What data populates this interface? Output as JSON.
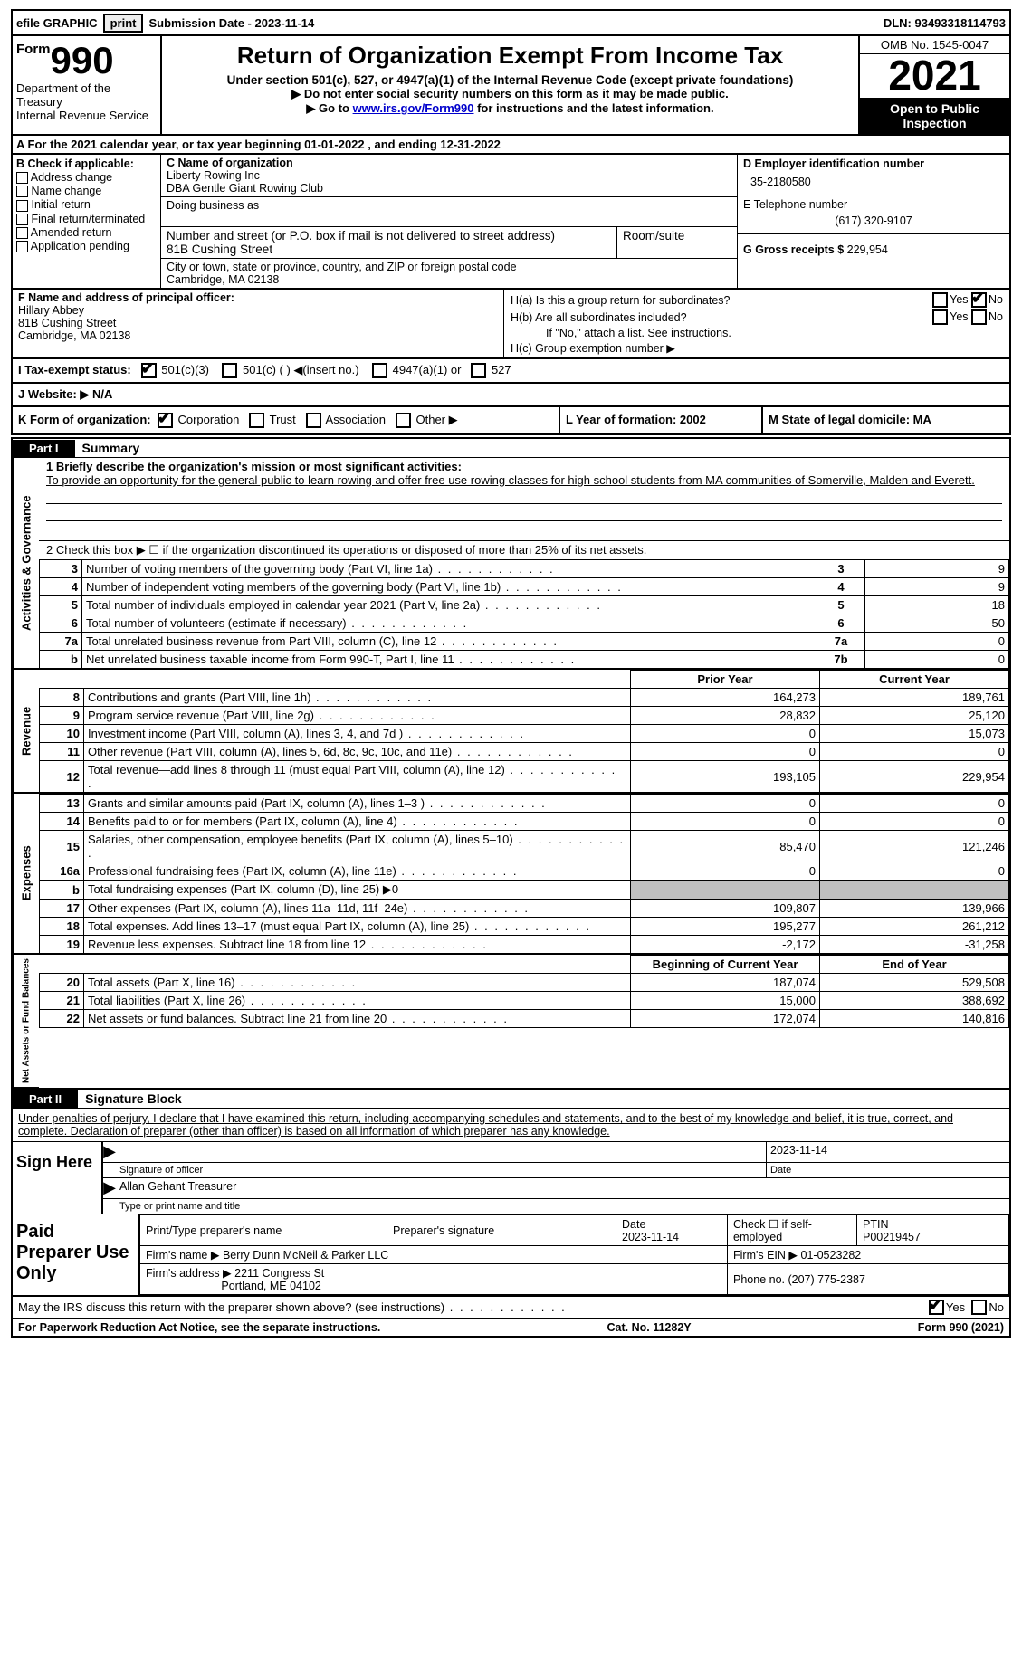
{
  "topbar": {
    "efile": "efile GRAPHIC",
    "print": "print",
    "submission": "Submission Date - 2023-11-14",
    "dln": "DLN: 93493318114793"
  },
  "header": {
    "form_word": "Form",
    "form_no": "990",
    "dept": "Department of the Treasury",
    "irs": "Internal Revenue Service",
    "title": "Return of Organization Exempt From Income Tax",
    "sub1": "Under section 501(c), 527, or 4947(a)(1) of the Internal Revenue Code (except private foundations)",
    "sub2a": "Do not enter social security numbers on this form as it may be made public.",
    "sub2b_pre": "Go to ",
    "sub2b_link": "www.irs.gov/Form990",
    "sub2b_post": " for instructions and the latest information.",
    "omb": "OMB No. 1545-0047",
    "year": "2021",
    "open": "Open to Public Inspection"
  },
  "row_a": "A For the 2021 calendar year, or tax year beginning 01-01-2022    , and ending 12-31-2022",
  "section_b": {
    "b_title": "B Check if applicable:",
    "opts": [
      "Address change",
      "Name change",
      "Initial return",
      "Final return/terminated",
      "Amended return",
      "Application pending"
    ],
    "c_label": "C Name of organization",
    "c_name": "Liberty Rowing Inc",
    "c_dba": "DBA Gentle Giant Rowing Club",
    "dba_lbl": "Doing business as",
    "addr_lbl": "Number and street (or P.O. box if mail is not delivered to street address)",
    "addr": "81B Cushing Street",
    "room_lbl": "Room/suite",
    "city_lbl": "City or town, state or province, country, and ZIP or foreign postal code",
    "city": "Cambridge, MA  02138",
    "d_lbl": "D Employer identification number",
    "d_val": "35-2180580",
    "e_lbl": "E Telephone number",
    "e_val": "(617) 320-9107",
    "g_lbl": "G Gross receipts $ ",
    "g_val": "229,954"
  },
  "section_f": {
    "f_lbl": "F  Name and address of principal officer:",
    "f_name": "Hillary Abbey",
    "f_addr1": "81B Cushing Street",
    "f_addr2": "Cambridge, MA  02138",
    "ha": "H(a)  Is this a group return for subordinates?",
    "hb": "H(b)  Are all subordinates included?",
    "hb_note": "If \"No,\" attach a list. See instructions.",
    "hc": "H(c)  Group exemption number ▶",
    "yes": "Yes",
    "no": "No"
  },
  "row_i": {
    "lbl": "I    Tax-exempt status:",
    "o1": "501(c)(3)",
    "o2": "501(c) (  ) ◀(insert no.)",
    "o3": "4947(a)(1) or",
    "o4": "527"
  },
  "row_j": {
    "lbl": "J   Website: ▶",
    "val": "  N/A"
  },
  "row_k": {
    "k": "K Form of organization:",
    "opts": [
      "Corporation",
      "Trust",
      "Association",
      "Other ▶"
    ],
    "l": "L Year of formation: 2002",
    "m": "M State of legal domicile: MA"
  },
  "part1": {
    "bar": "Part I",
    "title": "Summary",
    "line1": "1   Briefly describe the organization's mission or most significant activities:",
    "mission": "To provide an opportunity for the general public to learn rowing and offer free use rowing classes for high school students from MA communities of Somerville, Malden and Everett.",
    "line2": "2   Check this box ▶ ☐  if the organization discontinued its operations or disposed of more than 25% of its net assets.",
    "rows": [
      {
        "n": "3",
        "l": "Number of voting members of the governing body (Part VI, line 1a)",
        "box": "3",
        "v": "9"
      },
      {
        "n": "4",
        "l": "Number of independent voting members of the governing body (Part VI, line 1b)",
        "box": "4",
        "v": "9"
      },
      {
        "n": "5",
        "l": "Total number of individuals employed in calendar year 2021 (Part V, line 2a)",
        "box": "5",
        "v": "18"
      },
      {
        "n": "6",
        "l": "Total number of volunteers (estimate if necessary)",
        "box": "6",
        "v": "50"
      },
      {
        "n": "7a",
        "l": "Total unrelated business revenue from Part VIII, column (C), line 12",
        "box": "7a",
        "v": "0"
      },
      {
        "n": "b",
        "l": "Net unrelated business taxable income from Form 990-T, Part I, line 11",
        "box": "7b",
        "v": "0"
      }
    ],
    "side1": "Activities & Governance",
    "side2": "Revenue",
    "side3": "Expenses",
    "side4": "Net Assets or Fund Balances",
    "hdr_prior": "Prior Year",
    "hdr_curr": "Current Year",
    "rev": [
      {
        "n": "8",
        "l": "Contributions and grants (Part VIII, line 1h)",
        "p": "164,273",
        "c": "189,761"
      },
      {
        "n": "9",
        "l": "Program service revenue (Part VIII, line 2g)",
        "p": "28,832",
        "c": "25,120"
      },
      {
        "n": "10",
        "l": "Investment income (Part VIII, column (A), lines 3, 4, and 7d )",
        "p": "0",
        "c": "15,073"
      },
      {
        "n": "11",
        "l": "Other revenue (Part VIII, column (A), lines 5, 6d, 8c, 9c, 10c, and 11e)",
        "p": "0",
        "c": "0"
      },
      {
        "n": "12",
        "l": "Total revenue—add lines 8 through 11 (must equal Part VIII, column (A), line 12)",
        "p": "193,105",
        "c": "229,954"
      }
    ],
    "exp": [
      {
        "n": "13",
        "l": "Grants and similar amounts paid (Part IX, column (A), lines 1–3 )",
        "p": "0",
        "c": "0"
      },
      {
        "n": "14",
        "l": "Benefits paid to or for members (Part IX, column (A), line 4)",
        "p": "0",
        "c": "0"
      },
      {
        "n": "15",
        "l": "Salaries, other compensation, employee benefits (Part IX, column (A), lines 5–10)",
        "p": "85,470",
        "c": "121,246"
      },
      {
        "n": "16a",
        "l": "Professional fundraising fees (Part IX, column (A), line 11e)",
        "p": "0",
        "c": "0"
      },
      {
        "n": "b",
        "l": "Total fundraising expenses (Part IX, column (D), line 25) ▶0",
        "p": "shade",
        "c": "shade"
      },
      {
        "n": "17",
        "l": "Other expenses (Part IX, column (A), lines 11a–11d, 11f–24e)",
        "p": "109,807",
        "c": "139,966"
      },
      {
        "n": "18",
        "l": "Total expenses. Add lines 13–17 (must equal Part IX, column (A), line 25)",
        "p": "195,277",
        "c": "261,212"
      },
      {
        "n": "19",
        "l": "Revenue less expenses. Subtract line 18 from line 12",
        "p": "-2,172",
        "c": "-31,258"
      }
    ],
    "hdr_boy": "Beginning of Current Year",
    "hdr_eoy": "End of Year",
    "net": [
      {
        "n": "20",
        "l": "Total assets (Part X, line 16)",
        "p": "187,074",
        "c": "529,508"
      },
      {
        "n": "21",
        "l": "Total liabilities (Part X, line 26)",
        "p": "15,000",
        "c": "388,692"
      },
      {
        "n": "22",
        "l": "Net assets or fund balances. Subtract line 21 from line 20",
        "p": "172,074",
        "c": "140,816"
      }
    ]
  },
  "part2": {
    "bar": "Part II",
    "title": "Signature Block",
    "decl": "Under penalties of perjury, I declare that I have examined this return, including accompanying schedules and statements, and to the best of my knowledge and belief, it is true, correct, and complete. Declaration of preparer (other than officer) is based on all information of which preparer has any knowledge.",
    "sign_here": "Sign Here",
    "sig_off": "Signature of officer",
    "sig_date_lbl": "Date",
    "sig_date": "2023-11-14",
    "officer": "Allan Gehant  Treasurer",
    "type_name": "Type or print name and title",
    "paid": "Paid Preparer Use Only",
    "print_name": "Print/Type preparer's name",
    "prep_sig": "Preparer's signature",
    "date_lbl": "Date",
    "date_val": "2023-11-14",
    "check_self": "Check ☐ if self-employed",
    "ptin_lbl": "PTIN",
    "ptin": "P00219457",
    "firm_name_lbl": "Firm's name    ▶",
    "firm_name": "Berry Dunn McNeil & Parker LLC",
    "firm_ein_lbl": "Firm's EIN ▶",
    "firm_ein": "01-0523282",
    "firm_addr_lbl": "Firm's address ▶",
    "firm_addr1": "2211 Congress St",
    "firm_addr2": "Portland, ME  04102",
    "phone_lbl": "Phone no.",
    "phone": "(207) 775-2387",
    "irs_q": "May the IRS discuss this return with the preparer shown above? (see instructions)",
    "yes": "Yes",
    "no": "No"
  },
  "footer": {
    "l": "For Paperwork Reduction Act Notice, see the separate instructions.",
    "m": "Cat. No. 11282Y",
    "r": "Form 990 (2021)"
  }
}
